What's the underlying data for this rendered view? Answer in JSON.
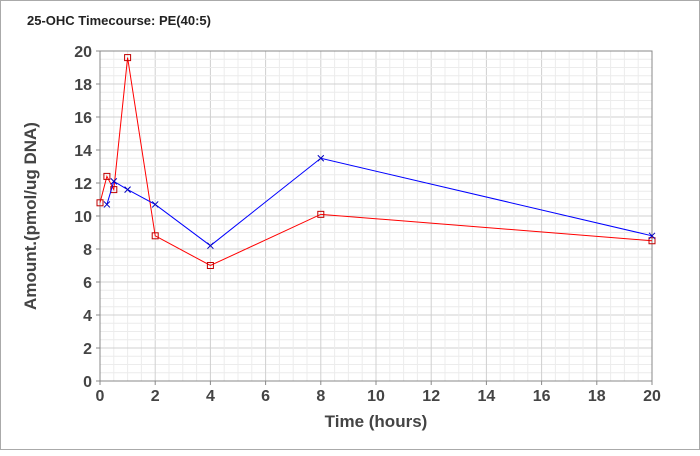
{
  "chart_data": {
    "type": "line",
    "title": "25-OHC Timecourse: PE(40:5)",
    "xlabel": "Time (hours)",
    "ylabel": "Amount.(pmol/ug DNA)",
    "xlim": [
      0,
      20
    ],
    "ylim": [
      0,
      20
    ],
    "xticks": [
      0,
      2,
      4,
      6,
      8,
      10,
      12,
      14,
      16,
      18,
      20
    ],
    "yticks": [
      0,
      2,
      4,
      6,
      8,
      10,
      12,
      14,
      16,
      18,
      20
    ],
    "grid": true,
    "series": [
      {
        "name": "red-square",
        "color": "#ff0000",
        "marker": "square",
        "x": [
          0,
          0.25,
          0.5,
          1,
          2,
          4,
          8,
          20
        ],
        "y": [
          10.8,
          12.4,
          11.6,
          19.6,
          8.8,
          7.0,
          10.1,
          8.5
        ]
      },
      {
        "name": "blue-cross",
        "color": "#0000ff",
        "marker": "x",
        "x": [
          0.25,
          0.5,
          1,
          2,
          4,
          8,
          20
        ],
        "y": [
          10.7,
          12.1,
          11.6,
          10.7,
          8.2,
          13.5,
          8.8
        ]
      }
    ]
  }
}
